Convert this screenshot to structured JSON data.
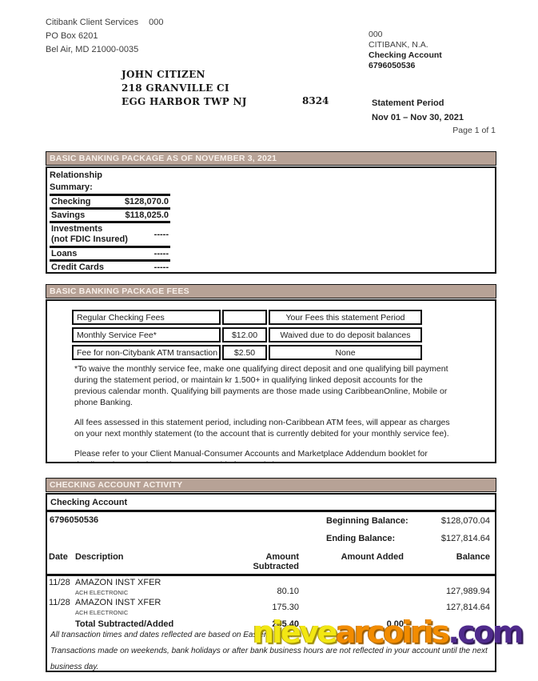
{
  "colors": {
    "section_header_bg": "#b7a296",
    "section_header_text": "#f8f0ea",
    "border": "#111111",
    "watermark_yellow": "#f2e713",
    "watermark_orange": "#f28c00",
    "watermark_purple": "#4f2a8c"
  },
  "header": {
    "sender": {
      "line1": "Citibank Client Services",
      "line1_code": "000",
      "line2": "PO Box 6201",
      "line3": "Bel Air, MD 21000-0035"
    },
    "bank_info": {
      "code": "000",
      "bank_name": "CITIBANK, N.A.",
      "account_type": "Checking Account",
      "account_number": "6796050536"
    },
    "recipient": {
      "name": "JOHN CITIZEN",
      "address1": "218 GRANVILLE CI",
      "address2": "EGG HARBOR TWP NJ",
      "code": "8324"
    },
    "statement_period_label": "Statement Period",
    "statement_period_value": "Nov 01 – Nov 30, 2021",
    "page_indicator": "Page 1 of 1"
  },
  "summary_section": {
    "title": "BASIC BANKING PACKAGE AS OF NOVEMBER 3, 2021",
    "heading_line1": "Relationship",
    "heading_line2": "Summary:",
    "rows": [
      {
        "label": "Checking",
        "value": "$128,070.0"
      },
      {
        "label": "Savings",
        "value": "$118,025.0"
      },
      {
        "label": "Investments",
        "label2": "(not FDIC Insured)",
        "value": "-----"
      },
      {
        "label": "Loans",
        "value": "-----"
      },
      {
        "label": "Credit Cards",
        "value": "-----"
      }
    ]
  },
  "fees_section": {
    "title": "BASIC BANKING PACKAGE FEES",
    "table_rows": [
      {
        "name": "Regular Checking Fees",
        "amount": "",
        "status": "Your Fees this statement Period"
      },
      {
        "name": "Monthly Service Fee*",
        "amount": "$12.00",
        "status": "Waived due to do deposit balances"
      },
      {
        "name": "Fee for non-Citybank ATM transaction",
        "amount": "$2.50",
        "status": "None"
      }
    ],
    "paragraphs": [
      "*To waive the monthly service fee, make one qualifying direct deposit and one qualifying bill payment during the statement period, or maintain kr 1.500+ in qualifying linked deposit accounts for the previous calendar month. Qualifying bill payments are those made using CaribbeanOnline, Mobile or phone Banking.",
      "All fees assessed in this statement period, including non-Caribbean ATM fees, will appear as charges on your next monthly statement (to the account that is currently debited for your monthly service fee).",
      "Please refer to your Client Manual-Consumer Accounts and Marketplace Addendum booklet for details on how we determine your monthly fees and charges."
    ]
  },
  "activity_section": {
    "title": "CHECKING ACCOUNT ACTIVITY",
    "subtitle": "Checking Account",
    "account_number": "6796050536",
    "beginning_balance_label": "Beginning Balance:",
    "beginning_balance": "$128,070.04",
    "ending_balance_label": "Ending Balance:",
    "ending_balance": "$127,814.64",
    "columns": {
      "date": "Date",
      "description": "Description",
      "amount_subtracted": "Amount Subtracted",
      "amount_added": "Amount Added",
      "balance": "Balance"
    },
    "transactions": [
      {
        "date": "11/28",
        "description": "AMAZON INST XFER",
        "sub_description": "ACH ELECTRONIC",
        "amount_subtracted": "80.10",
        "amount_added": "",
        "balance": "127,989.94"
      },
      {
        "date": "11/28",
        "description": "AMAZON INST XFER",
        "sub_description": "ACH ELECTRONIC",
        "amount_subtracted": "175.30",
        "amount_added": "",
        "balance": "127,814.64"
      }
    ],
    "total_row": {
      "label": "Total Subtracted/Added",
      "subtracted": "255.40",
      "added": "0.00"
    },
    "footnote_lines": [
      "All transaction times and dates reflected are based on Eastern Time.",
      "Transactions made on weekends, bank holidays or after bank business hours are not reflected in your account until the next",
      "business day."
    ]
  },
  "watermark": {
    "part1": "nieve",
    "part2": "arcoiris",
    "part3": ".com"
  }
}
